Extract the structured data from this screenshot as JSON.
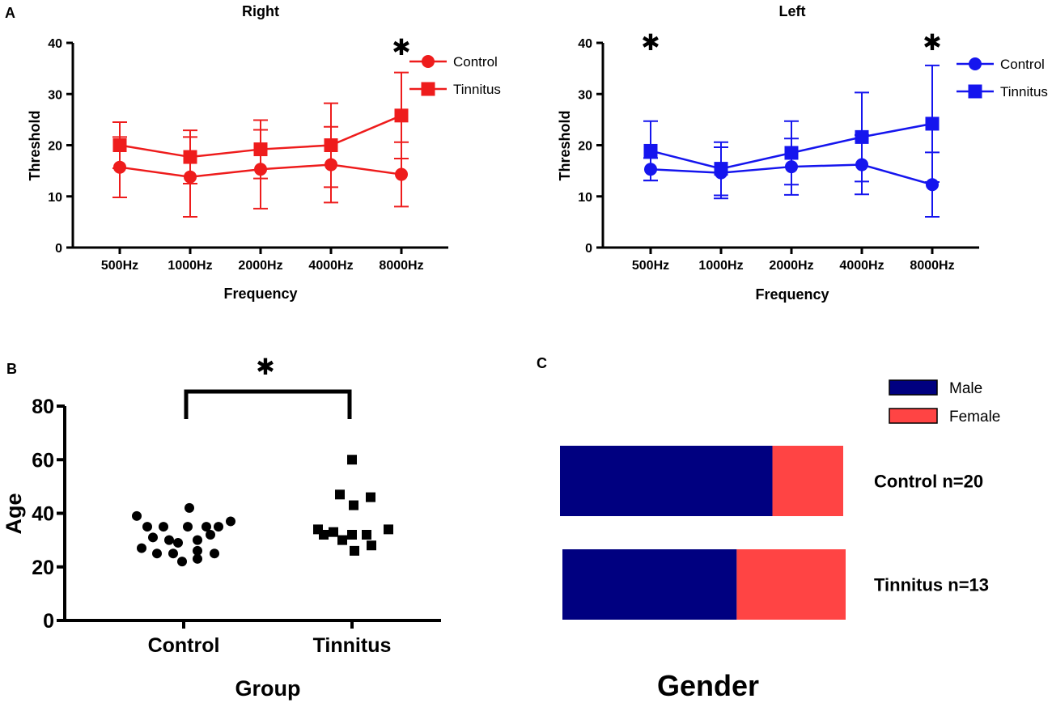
{
  "figure": {
    "panel_labels": {
      "a": "A",
      "b": "B",
      "c": "C"
    },
    "significance_symbol": "✱"
  },
  "chart_data": [
    {
      "id": "right",
      "type": "line",
      "title": "Right",
      "xlabel": "Frequency",
      "ylabel": "Threshold",
      "categories": [
        "500Hz",
        "1000Hz",
        "2000Hz",
        "4000Hz",
        "8000Hz"
      ],
      "ylim": [
        0,
        40
      ],
      "yticks": [
        "0",
        "10",
        "20",
        "30",
        "40"
      ],
      "color": "#ee1c1c",
      "significant": [
        false,
        false,
        false,
        false,
        true
      ],
      "series": [
        {
          "name": "Control",
          "marker": "circle",
          "values": [
            15.7,
            13.8,
            15.3,
            16.2,
            14.3
          ],
          "error": [
            5.9,
            7.8,
            7.7,
            7.4,
            6.3
          ]
        },
        {
          "name": "Tinnitus",
          "marker": "square",
          "values": [
            20.0,
            17.7,
            19.2,
            20.0,
            25.8
          ],
          "error": [
            4.5,
            5.2,
            5.7,
            8.2,
            8.4
          ]
        }
      ]
    },
    {
      "id": "left",
      "type": "line",
      "title": "Left",
      "xlabel": "Frequency",
      "ylabel": "Threshold",
      "categories": [
        "500Hz",
        "1000Hz",
        "2000Hz",
        "4000Hz",
        "8000Hz"
      ],
      "ylim": [
        0,
        40
      ],
      "yticks": [
        "0",
        "10",
        "20",
        "30",
        "40"
      ],
      "color": "#1515ee",
      "significant": [
        true,
        false,
        false,
        false,
        true
      ],
      "series": [
        {
          "name": "Control",
          "marker": "circle",
          "values": [
            15.3,
            14.6,
            15.8,
            16.2,
            12.3
          ],
          "error": [
            2.2,
            5.0,
            5.5,
            5.8,
            6.3
          ]
        },
        {
          "name": "Tinnitus",
          "marker": "square",
          "values": [
            18.9,
            15.4,
            18.5,
            21.6,
            24.2
          ],
          "error": [
            5.8,
            5.2,
            6.2,
            8.7,
            11.4
          ]
        }
      ]
    },
    {
      "id": "age",
      "type": "scatter",
      "xlabel": "Group",
      "ylabel": "Age",
      "categories": [
        "Control",
        "Tinnitus"
      ],
      "ylim": [
        0,
        80
      ],
      "yticks": [
        "0",
        "20",
        "40",
        "60",
        "80"
      ],
      "significant": true,
      "series": [
        {
          "name": "Control",
          "marker": "circle",
          "points": [
            [
              -0.58,
              39
            ],
            [
              -0.45,
              35
            ],
            [
              -0.25,
              35
            ],
            [
              0.05,
              35
            ],
            [
              0.28,
              35
            ],
            [
              0.43,
              35
            ],
            [
              0.58,
              37
            ],
            [
              -0.38,
              31
            ],
            [
              -0.18,
              30
            ],
            [
              0.17,
              30
            ],
            [
              0.33,
              32
            ],
            [
              -0.07,
              29
            ],
            [
              0.07,
              42
            ],
            [
              -0.52,
              27
            ],
            [
              -0.33,
              25
            ],
            [
              -0.13,
              25
            ],
            [
              0.17,
              26
            ],
            [
              0.38,
              25
            ],
            [
              -0.02,
              22
            ],
            [
              0.17,
              23
            ]
          ]
        },
        {
          "name": "Tinnitus",
          "marker": "square",
          "points": [
            [
              0.0,
              60
            ],
            [
              -0.15,
              47
            ],
            [
              0.23,
              46
            ],
            [
              0.02,
              43
            ],
            [
              -0.42,
              34
            ],
            [
              -0.23,
              33
            ],
            [
              0.0,
              32
            ],
            [
              0.18,
              32
            ],
            [
              0.45,
              34
            ],
            [
              -0.12,
              30
            ],
            [
              0.24,
              28
            ],
            [
              0.03,
              26
            ],
            [
              -0.35,
              32
            ]
          ]
        }
      ]
    },
    {
      "id": "gender",
      "type": "bar",
      "orientation": "horizontal-stacked",
      "xlabel": "Gender",
      "categories": [
        "Control n=20",
        "Tinnitus n=13"
      ],
      "series": [
        {
          "name": "Male",
          "color": "#000080",
          "values": [
            15,
            8
          ]
        },
        {
          "name": "Female",
          "color": "#ff4444",
          "values": [
            5,
            5
          ]
        }
      ]
    }
  ]
}
